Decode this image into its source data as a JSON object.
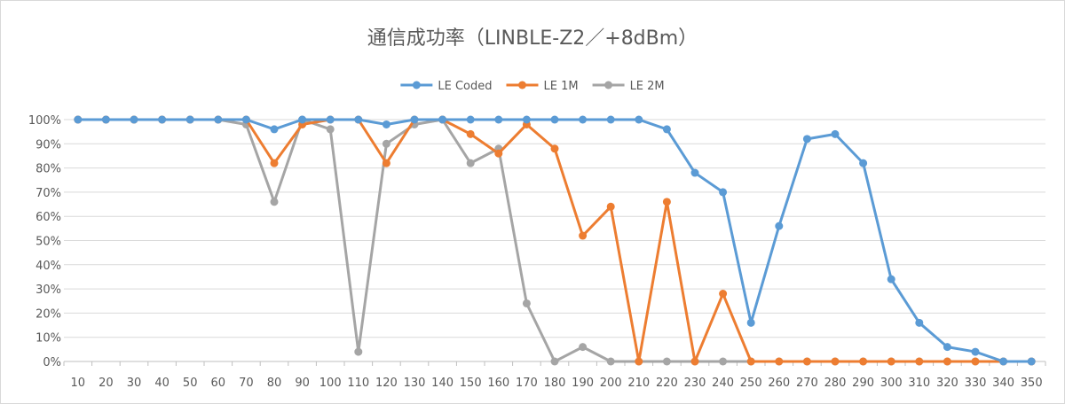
{
  "chart_data": {
    "type": "line",
    "title": "通信成功率（LINBLE-Z2／+8dBm）",
    "xlabel": "",
    "ylabel": "",
    "x": [
      10,
      20,
      30,
      40,
      50,
      60,
      70,
      80,
      90,
      100,
      110,
      120,
      130,
      140,
      150,
      160,
      170,
      180,
      190,
      200,
      210,
      220,
      230,
      240,
      250,
      260,
      270,
      280,
      290,
      300,
      310,
      320,
      330,
      340,
      350
    ],
    "ylim": [
      0,
      100
    ],
    "y_ticks": [
      "0%",
      "10%",
      "20%",
      "30%",
      "40%",
      "50%",
      "60%",
      "70%",
      "80%",
      "90%",
      "100%"
    ],
    "grid": true,
    "legend_position": "top",
    "series": [
      {
        "name": "LE Coded",
        "color": "#5b9bd5",
        "values": [
          100,
          100,
          100,
          100,
          100,
          100,
          100,
          96,
          100,
          100,
          100,
          98,
          100,
          100,
          100,
          100,
          100,
          100,
          100,
          100,
          100,
          96,
          78,
          70,
          16,
          56,
          92,
          94,
          82,
          34,
          16,
          6,
          4,
          0,
          0
        ]
      },
      {
        "name": "LE 1M",
        "color": "#ed7d31",
        "values": [
          100,
          100,
          100,
          100,
          100,
          100,
          100,
          82,
          98,
          100,
          100,
          82,
          100,
          100,
          94,
          86,
          98,
          88,
          52,
          64,
          0,
          66,
          0,
          28,
          0,
          0,
          0,
          0,
          0,
          0,
          0,
          0,
          0,
          0,
          0
        ]
      },
      {
        "name": "LE 2M",
        "color": "#a5a5a5",
        "values": [
          100,
          100,
          100,
          100,
          100,
          100,
          98,
          66,
          100,
          96,
          4,
          90,
          98,
          100,
          82,
          88,
          24,
          0,
          6,
          0,
          0,
          0,
          0,
          0,
          0,
          0,
          0,
          0,
          0,
          0,
          0,
          0,
          0,
          0,
          0
        ]
      }
    ]
  }
}
